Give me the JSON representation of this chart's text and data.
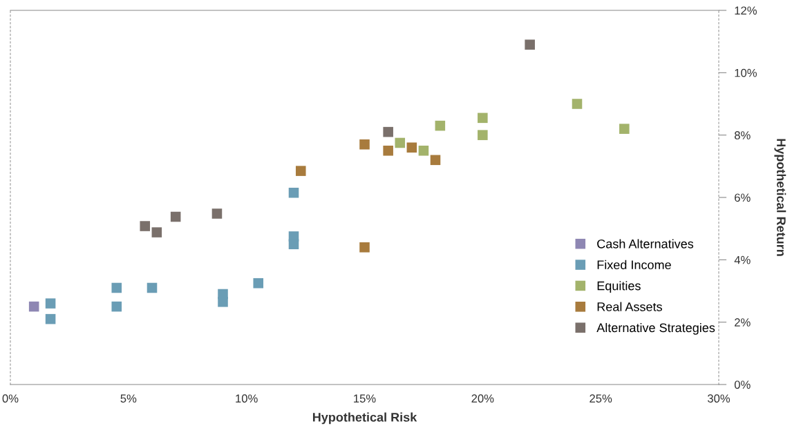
{
  "chart_data": {
    "type": "scatter",
    "xlabel": "Hypothetical Risk",
    "ylabel": "Hypothetical Return",
    "marker": "square",
    "legend": "bottom right",
    "grid": false,
    "xlim": [
      0,
      30
    ],
    "xticks": [
      {
        "value": 0,
        "label": "0%"
      },
      {
        "value": 5,
        "label": "5%"
      },
      {
        "value": 10,
        "label": "10%"
      },
      {
        "value": 15,
        "label": "15%"
      },
      {
        "value": 20,
        "label": "20%"
      },
      {
        "value": 25,
        "label": "25%"
      },
      {
        "value": 30,
        "label": "30%"
      }
    ],
    "ylim": [
      0,
      12
    ],
    "yticks": [
      {
        "value": 0,
        "label": "0%"
      },
      {
        "value": 2,
        "label": "2%"
      },
      {
        "value": 4,
        "label": "4%"
      },
      {
        "value": 6,
        "label": "6%"
      },
      {
        "value": 8,
        "label": "8%"
      },
      {
        "value": 10,
        "label": "10%"
      },
      {
        "value": 12,
        "label": "12%"
      }
    ],
    "series": [
      {
        "name": "Cash Alternatives",
        "color": "#8e87b3",
        "x": [
          1.0
        ],
        "values": [
          2.5
        ]
      },
      {
        "name": "Fixed Income",
        "color": "#6a9db5",
        "x": [
          1.7,
          1.7,
          4.5,
          4.5,
          6.0,
          9.0,
          9.0,
          10.5,
          12.0,
          12.0,
          12.0
        ],
        "values": [
          2.6,
          2.1,
          3.1,
          2.5,
          3.1,
          2.9,
          2.65,
          3.25,
          6.15,
          4.75,
          4.5
        ]
      },
      {
        "name": "Equities",
        "color": "#a3b36b",
        "x": [
          16.5,
          17.5,
          18.2,
          20.0,
          20.0,
          24.0,
          26.0
        ],
        "values": [
          7.75,
          7.5,
          8.3,
          8.55,
          8.0,
          9.0,
          8.2
        ]
      },
      {
        "name": "Real Assets",
        "color": "#a87b3d",
        "x": [
          15.0,
          16.0,
          12.3,
          17.0,
          18.0,
          15.0
        ],
        "values": [
          7.7,
          7.5,
          6.85,
          7.6,
          7.2,
          4.4
        ]
      },
      {
        "name": "Alternative Strategies",
        "color": "#7a706b",
        "x": [
          22.0,
          16.0,
          5.7,
          6.2,
          7.0,
          8.75
        ],
        "values": [
          10.9,
          8.1,
          5.08,
          4.88,
          5.38,
          5.48
        ]
      }
    ]
  }
}
